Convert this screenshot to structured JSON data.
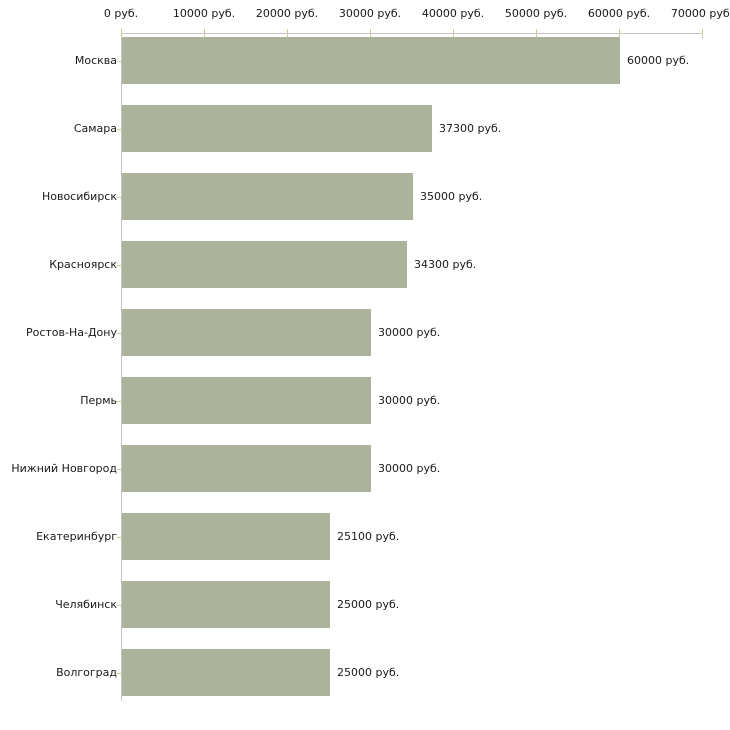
{
  "chart_data": {
    "type": "bar",
    "orientation": "horizontal",
    "title": "",
    "xlabel": "",
    "ylabel": "",
    "unit": "руб.",
    "categories": [
      "Москва",
      "Самара",
      "Новосибирск",
      "Красноярск",
      "Ростов-На-Дону",
      "Пермь",
      "Нижний Новгород",
      "Екатеринбург",
      "Челябинск",
      "Волгоград"
    ],
    "values": [
      60000,
      37300,
      35000,
      34300,
      30000,
      30000,
      30000,
      25100,
      25000,
      25000
    ],
    "value_labels": [
      "60000 руб.",
      "37300 руб.",
      "35000 руб.",
      "34300 руб.",
      "30000 руб.",
      "30000 руб.",
      "30000 руб.",
      "25100 руб.",
      "25000 руб.",
      "25000 руб."
    ],
    "x_ticks": [
      0,
      10000,
      20000,
      30000,
      40000,
      50000,
      60000,
      70000
    ],
    "x_tick_labels": [
      "0 руб.",
      "10000 руб.",
      "20000 руб.",
      "30000 руб.",
      "40000 руб.",
      "50000 руб.",
      "60000 руб.",
      "70000 руб."
    ],
    "xlim": [
      0,
      70000
    ],
    "grid": false,
    "legend_position": "none",
    "colors": {
      "bar": "#abb49a",
      "axis_line": "#c6c6c6",
      "tick": "#cccc99",
      "text": "#1a1a1a",
      "background": "#ffffff"
    }
  }
}
